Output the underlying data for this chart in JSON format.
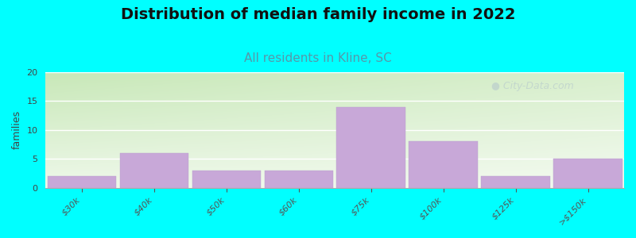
{
  "title": "Distribution of median family income in 2022",
  "subtitle": "All residents in Kline, SC",
  "categories": [
    "$30k",
    "$40k",
    "$50k",
    "$60k",
    "$75k",
    "$100k",
    "$125k",
    ">$150k"
  ],
  "values": [
    2,
    6,
    3,
    3,
    14,
    8,
    2,
    5
  ],
  "bar_color": "#c8a8d8",
  "bar_edge_color": "#b8a0cc",
  "ylabel": "families",
  "ylim": [
    0,
    20
  ],
  "yticks": [
    0,
    5,
    10,
    15,
    20
  ],
  "figure_bg_color": "#00FFFF",
  "bg_color_topleft": "#c8e8b8",
  "bg_color_topright": "#e8f0e0",
  "bg_color_bottom": "#f0f4ee",
  "title_fontsize": 14,
  "subtitle_fontsize": 11,
  "subtitle_color": "#5599aa",
  "watermark_text": "City-Data.com",
  "watermark_color": "#aabbcc",
  "watermark_alpha": 0.45
}
